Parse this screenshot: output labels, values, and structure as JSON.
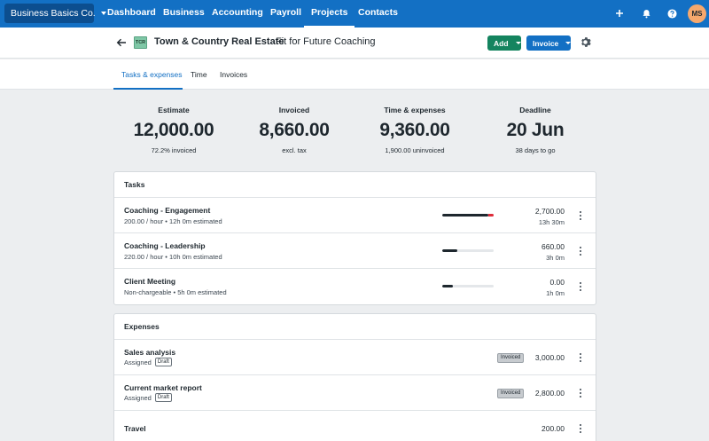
{
  "nav": {
    "org": "Business Basics Co.",
    "items": [
      "Dashboard",
      "Business",
      "Accounting",
      "Payroll",
      "Projects",
      "Contacts"
    ],
    "active": "Projects",
    "avatar_initials": "MS",
    "accent": "#1370c4"
  },
  "header": {
    "logo_text": "TCR",
    "client": "Town & Country Real Estate",
    "project": "Fit for Future Coaching",
    "add_label": "Add",
    "invoice_label": "Invoice"
  },
  "tabs": [
    "Tasks & expenses",
    "Time",
    "Invoices"
  ],
  "summary": {
    "estimate": {
      "label": "Estimate",
      "value": "12,000.00",
      "sub": "72.2% invoiced"
    },
    "invoiced": {
      "label": "Invoiced",
      "value": "8,660.00",
      "sub": "excl. tax"
    },
    "time_expenses": {
      "label": "Time & expenses",
      "value": "9,360.00",
      "sub": "1,900.00 uninvoiced"
    },
    "deadline": {
      "label": "Deadline",
      "value": "20 Jun",
      "sub": "38 days to go"
    }
  },
  "tasks": {
    "title": "Tasks",
    "rows": [
      {
        "name": "Coaching - Engagement",
        "rate": "200.00 / hour",
        "estimate": "12h 0m estimated",
        "amount": "2,700.00",
        "time": "13h 30m",
        "progress": 1.0,
        "over": 0.125
      },
      {
        "name": "Coaching - Leadership",
        "rate": "220.00 / hour",
        "estimate": "10h 0m estimated",
        "amount": "660.00",
        "time": "3h 0m",
        "progress": 0.3,
        "over": 0
      },
      {
        "name": "Client Meeting",
        "rate": "Non-chargeable",
        "estimate": "5h 0m estimated",
        "amount": "0.00",
        "time": "1h 0m",
        "progress": 0.2,
        "over": 0
      }
    ]
  },
  "expenses": {
    "title": "Expenses",
    "rows": [
      {
        "name": "Sales analysis",
        "status": "Assigned",
        "draft": "Draft",
        "badge": "Invoiced",
        "amount": "3,000.00"
      },
      {
        "name": "Current market report",
        "status": "Assigned",
        "draft": "Draft",
        "badge": "Invoiced",
        "amount": "2,800.00"
      },
      {
        "name": "Travel",
        "amount": "200.00"
      }
    ]
  },
  "separator": "•"
}
